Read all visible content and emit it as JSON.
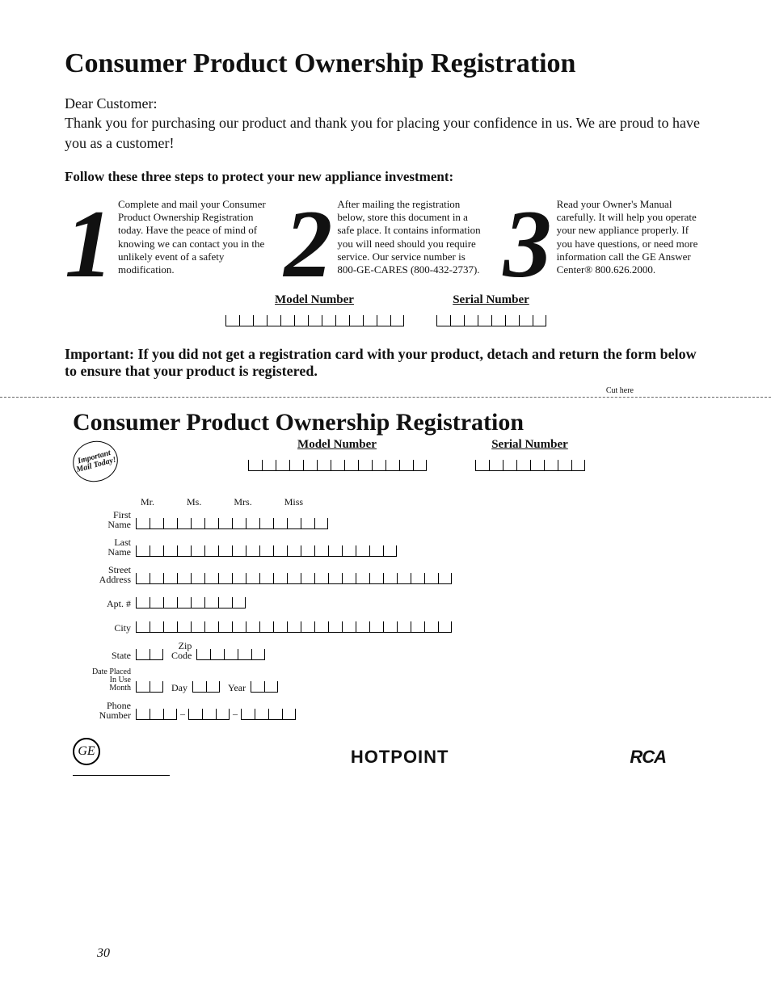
{
  "page_number": "30",
  "title": "Consumer Product Ownership Registration",
  "greeting": "Dear Customer:",
  "thankyou": "Thank you for purchasing our product and thank you for placing your confidence in us. We are proud to have you as a customer!",
  "follow_heading": "Follow these three steps to protect your new appliance investment:",
  "steps": {
    "s1": {
      "num": "1",
      "text": "Complete and mail your Consumer Product Ownership Registration today. Have the peace of mind of knowing we can contact you in the unlikely event of a safety modification."
    },
    "s2": {
      "num": "2",
      "text": "After mailing the registration below, store this document in a safe place. It contains information you will need should you require service. Our service number is 800-GE-CARES (800-432-2737)."
    },
    "s3": {
      "num": "3",
      "text": "Read your Owner's Manual carefully. It will help you operate your new appliance properly. If you have questions, or need more information call the GE Answer Center® 800.626.2000."
    }
  },
  "model_label": "Model Number",
  "serial_label": "Serial Number",
  "model_cells": 13,
  "serial_cells": 8,
  "important_label": "Important:",
  "important_text": "If you did not get a registration card with your product, detach and return the form below to ensure that your product is registered.",
  "cut_label": "Cut here",
  "form_title": "Consumer Product Ownership Registration",
  "stamp": "Important Mail Today!",
  "form": {
    "model_cells": 13,
    "serial_cells": 8,
    "salutations": [
      "Mr.",
      "Ms.",
      "Mrs.",
      "Miss"
    ],
    "labels": {
      "first": "First\nName",
      "last": "Last\nName",
      "street": "Street\nAddress",
      "apt": "Apt. #",
      "city": "City",
      "state": "State",
      "zip": "Zip\nCode",
      "date": "Date Placed\nIn Use\nMonth",
      "day": "Day",
      "year": "Year",
      "phone": "Phone\nNumber"
    },
    "cells": {
      "first": 14,
      "last": 19,
      "street": 23,
      "apt": 8,
      "city": 23,
      "state": 2,
      "zip": 5,
      "month": 2,
      "day": 2,
      "year": 2,
      "phone_a": 3,
      "phone_b": 3,
      "phone_c": 4
    }
  },
  "logos": {
    "ge": "GE",
    "hotpoint": "HOTPOINT",
    "rca": "RCA"
  }
}
